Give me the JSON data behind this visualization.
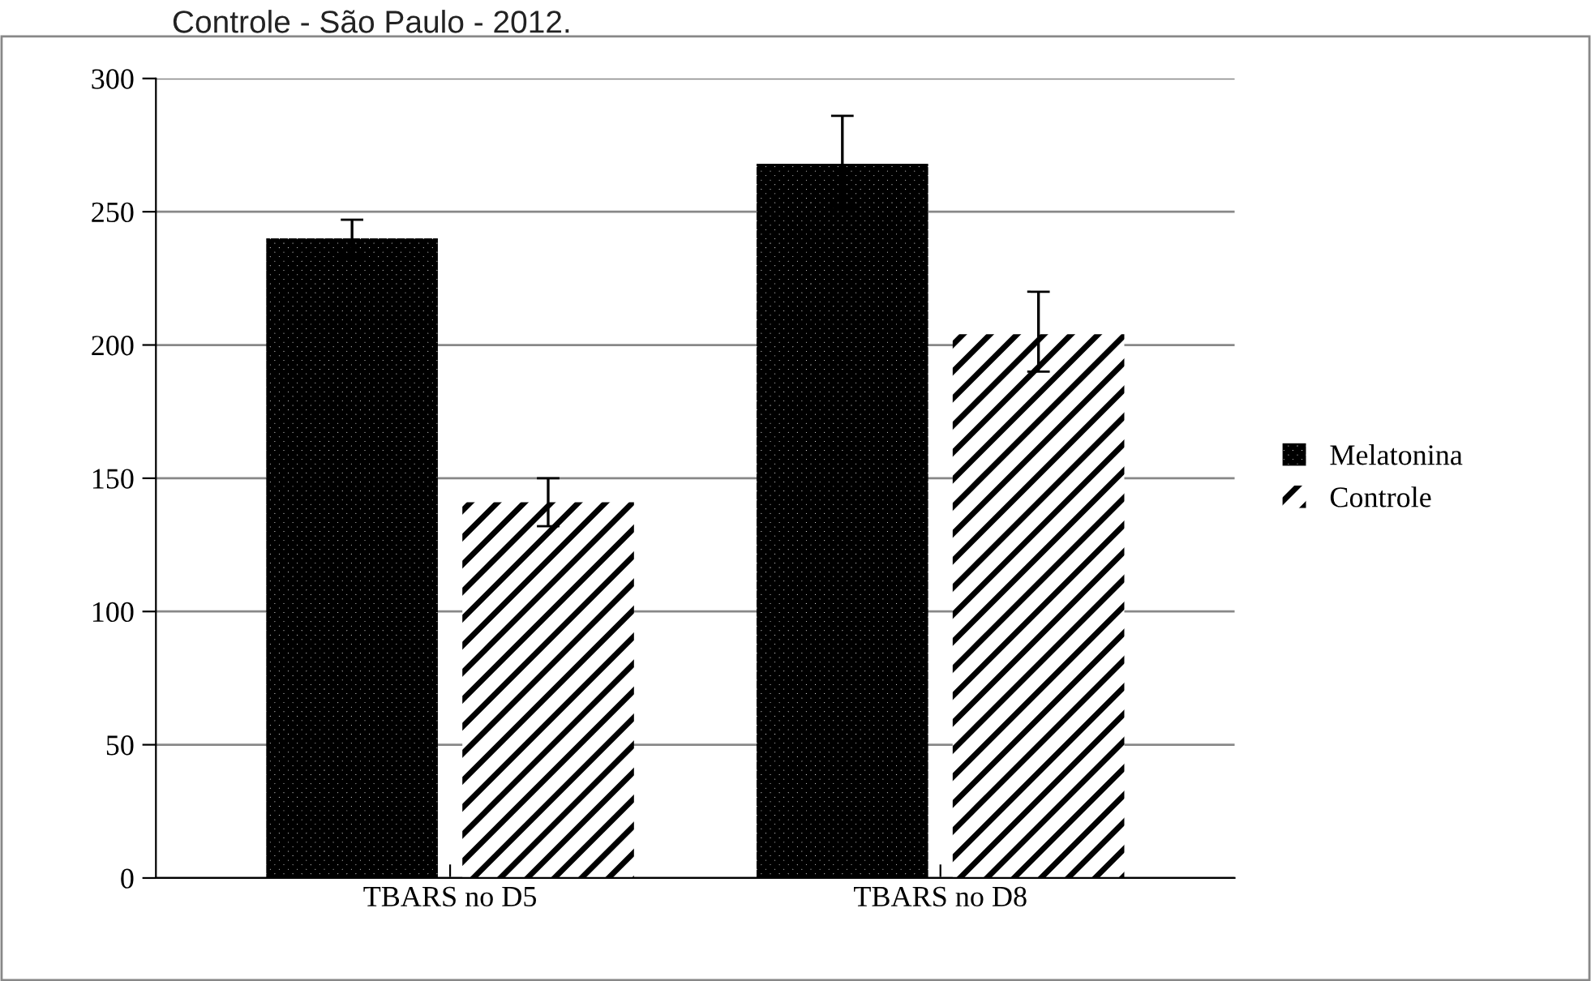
{
  "chart_data": {
    "type": "bar",
    "title": "Controle - São Paulo - 2012.",
    "categories": [
      "TBARS no D5",
      "TBARS no D8"
    ],
    "series": [
      {
        "name": "Melatonina",
        "color": "#000000",
        "values": [
          240,
          268
        ],
        "errors": [
          [
            233,
            247
          ],
          [
            252,
            286
          ]
        ]
      },
      {
        "name": "Controle",
        "color": "#000000",
        "values": [
          141,
          204
        ],
        "errors": [
          [
            132,
            150
          ],
          [
            190,
            220
          ]
        ]
      }
    ],
    "ylim": [
      0,
      300
    ],
    "yticks": [
      0,
      50,
      100,
      150,
      200,
      250,
      300
    ],
    "grid": "y",
    "legend": "right"
  }
}
